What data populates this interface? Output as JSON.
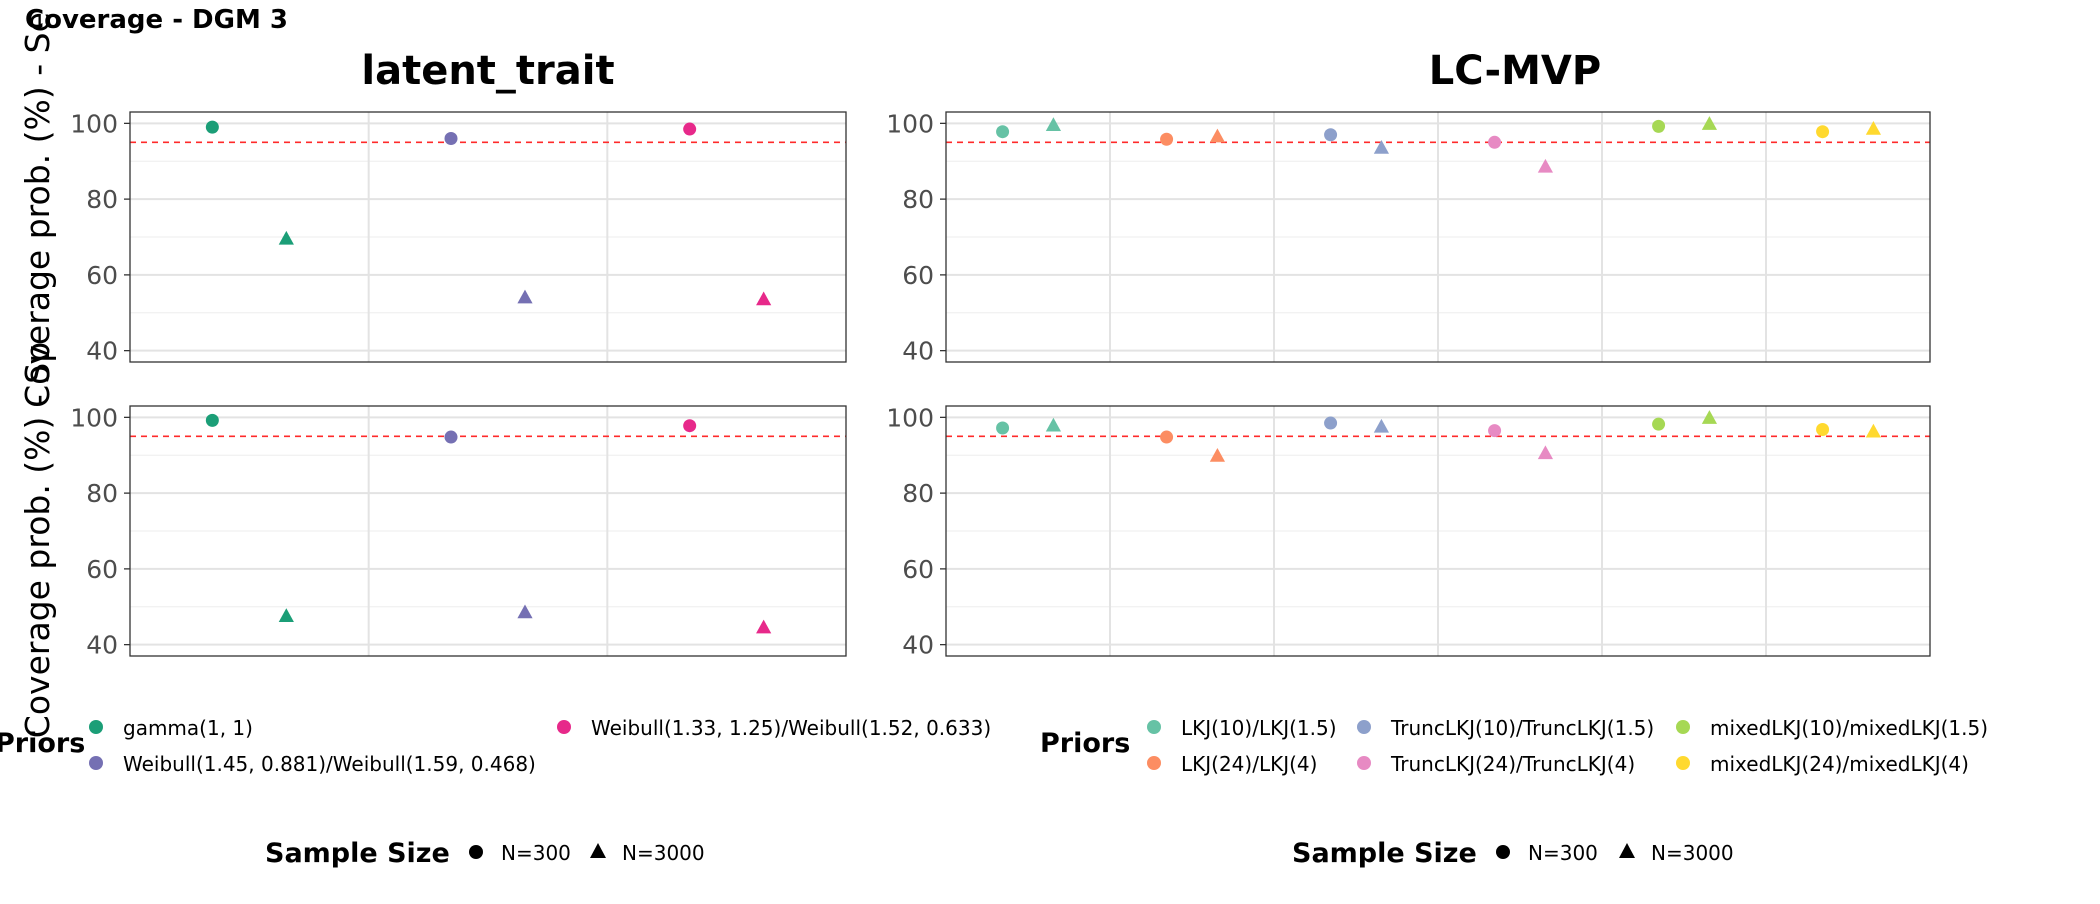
{
  "figure": {
    "title": "Coverage - DGM 3",
    "ylabel_top": "Coverage prob. (%) - Se",
    "ylabel_bottom": "Coverage prob. (%) - Sp",
    "reference_line": 95
  },
  "panels": {
    "latent": {
      "title": "latent_trait",
      "legend_title": "Priors",
      "legend_items": [
        {
          "label": "gamma(1, 1)",
          "color": "#1b9e77"
        },
        {
          "label": "Weibull(1.45, 0.881)/Weibull(1.59, 0.468)",
          "color": "#7570b3"
        },
        {
          "label": "Weibull(1.33, 1.25)/Weibull(1.52, 0.633)",
          "color": "#e7298a"
        }
      ],
      "size_legend_title": "Sample Size",
      "size_legend_items": [
        "N=300",
        "N=3000"
      ]
    },
    "lcmvp": {
      "title": "LC-MVP",
      "legend_title": "Priors",
      "legend_items": [
        {
          "label": "LKJ(10)/LKJ(1.5)",
          "color": "#66c2a5"
        },
        {
          "label": "LKJ(24)/LKJ(4)",
          "color": "#fc8d62"
        },
        {
          "label": "TruncLKJ(10)/TruncLKJ(1.5)",
          "color": "#8da0cb"
        },
        {
          "label": "TruncLKJ(24)/TruncLKJ(4)",
          "color": "#e78ac3"
        },
        {
          "label": "mixedLKJ(10)/mixedLKJ(1.5)",
          "color": "#a6d854"
        },
        {
          "label": "mixedLKJ(24)/mixedLKJ(4)",
          "color": "#ffd92f"
        }
      ],
      "size_legend_title": "Sample Size",
      "size_legend_items": [
        "N=300",
        "N=3000"
      ]
    }
  },
  "chart_data": [
    {
      "type": "scatter",
      "panel": "latent_trait",
      "row": "Se",
      "ylim": [
        37,
        103
      ],
      "yticks": [
        40,
        60,
        80,
        100
      ],
      "grid": true,
      "series": [
        {
          "prior": "gamma(1, 1)",
          "color": "#1b9e77",
          "values": {
            "N=300": 99.0,
            "N=3000": 69.5
          }
        },
        {
          "prior": "Weibull(1.45, 0.881)/Weibull(1.59, 0.468)",
          "color": "#7570b3",
          "values": {
            "N=300": 96.0,
            "N=3000": 54.0
          }
        },
        {
          "prior": "Weibull(1.33, 1.25)/Weibull(1.52, 0.633)",
          "color": "#e7298a",
          "values": {
            "N=300": 98.5,
            "N=3000": 53.5
          }
        }
      ]
    },
    {
      "type": "scatter",
      "panel": "latent_trait",
      "row": "Sp",
      "ylim": [
        37,
        103
      ],
      "yticks": [
        40,
        60,
        80,
        100
      ],
      "grid": true,
      "series": [
        {
          "prior": "gamma(1, 1)",
          "color": "#1b9e77",
          "values": {
            "N=300": 99.2,
            "N=3000": 47.5
          }
        },
        {
          "prior": "Weibull(1.45, 0.881)/Weibull(1.59, 0.468)",
          "color": "#7570b3",
          "values": {
            "N=300": 94.8,
            "N=3000": 48.5
          }
        },
        {
          "prior": "Weibull(1.33, 1.25)/Weibull(1.52, 0.633)",
          "color": "#e7298a",
          "values": {
            "N=300": 97.8,
            "N=3000": 44.5
          }
        }
      ]
    },
    {
      "type": "scatter",
      "panel": "LC-MVP",
      "row": "Se",
      "ylim": [
        37,
        103
      ],
      "yticks": [
        40,
        60,
        80,
        100
      ],
      "grid": true,
      "series": [
        {
          "prior": "LKJ(10)/LKJ(1.5)",
          "color": "#66c2a5",
          "values": {
            "N=300": 97.8,
            "N=3000": 99.5
          }
        },
        {
          "prior": "LKJ(24)/LKJ(4)",
          "color": "#fc8d62",
          "values": {
            "N=300": 95.8,
            "N=3000": 96.5
          }
        },
        {
          "prior": "TruncLKJ(10)/TruncLKJ(1.5)",
          "color": "#8da0cb",
          "values": {
            "N=300": 97.0,
            "N=3000": 93.5
          }
        },
        {
          "prior": "TruncLKJ(24)/TruncLKJ(4)",
          "color": "#e78ac3",
          "values": {
            "N=300": 95.0,
            "N=3000": 88.5
          }
        },
        {
          "prior": "mixedLKJ(10)/mixedLKJ(1.5)",
          "color": "#a6d854",
          "values": {
            "N=300": 99.2,
            "N=3000": 99.8
          }
        },
        {
          "prior": "mixedLKJ(24)/mixedLKJ(4)",
          "color": "#ffd92f",
          "values": {
            "N=300": 97.8,
            "N=3000": 98.5
          }
        }
      ]
    },
    {
      "type": "scatter",
      "panel": "LC-MVP",
      "row": "Sp",
      "ylim": [
        37,
        103
      ],
      "yticks": [
        40,
        60,
        80,
        100
      ],
      "grid": true,
      "series": [
        {
          "prior": "LKJ(10)/LKJ(1.5)",
          "color": "#66c2a5",
          "values": {
            "N=300": 97.2,
            "N=3000": 97.8
          }
        },
        {
          "prior": "LKJ(24)/LKJ(4)",
          "color": "#fc8d62",
          "values": {
            "N=300": 94.8,
            "N=3000": 89.8
          }
        },
        {
          "prior": "TruncLKJ(10)/TruncLKJ(1.5)",
          "color": "#8da0cb",
          "values": {
            "N=300": 98.5,
            "N=3000": 97.5
          }
        },
        {
          "prior": "TruncLKJ(24)/TruncLKJ(4)",
          "color": "#e78ac3",
          "values": {
            "N=300": 96.5,
            "N=3000": 90.5
          }
        },
        {
          "prior": "mixedLKJ(10)/mixedLKJ(1.5)",
          "color": "#a6d854",
          "values": {
            "N=300": 98.2,
            "N=3000": 99.8
          }
        },
        {
          "prior": "mixedLKJ(24)/mixedLKJ(4)",
          "color": "#ffd92f",
          "values": {
            "N=300": 96.8,
            "N=3000": 96.2
          }
        }
      ]
    }
  ]
}
